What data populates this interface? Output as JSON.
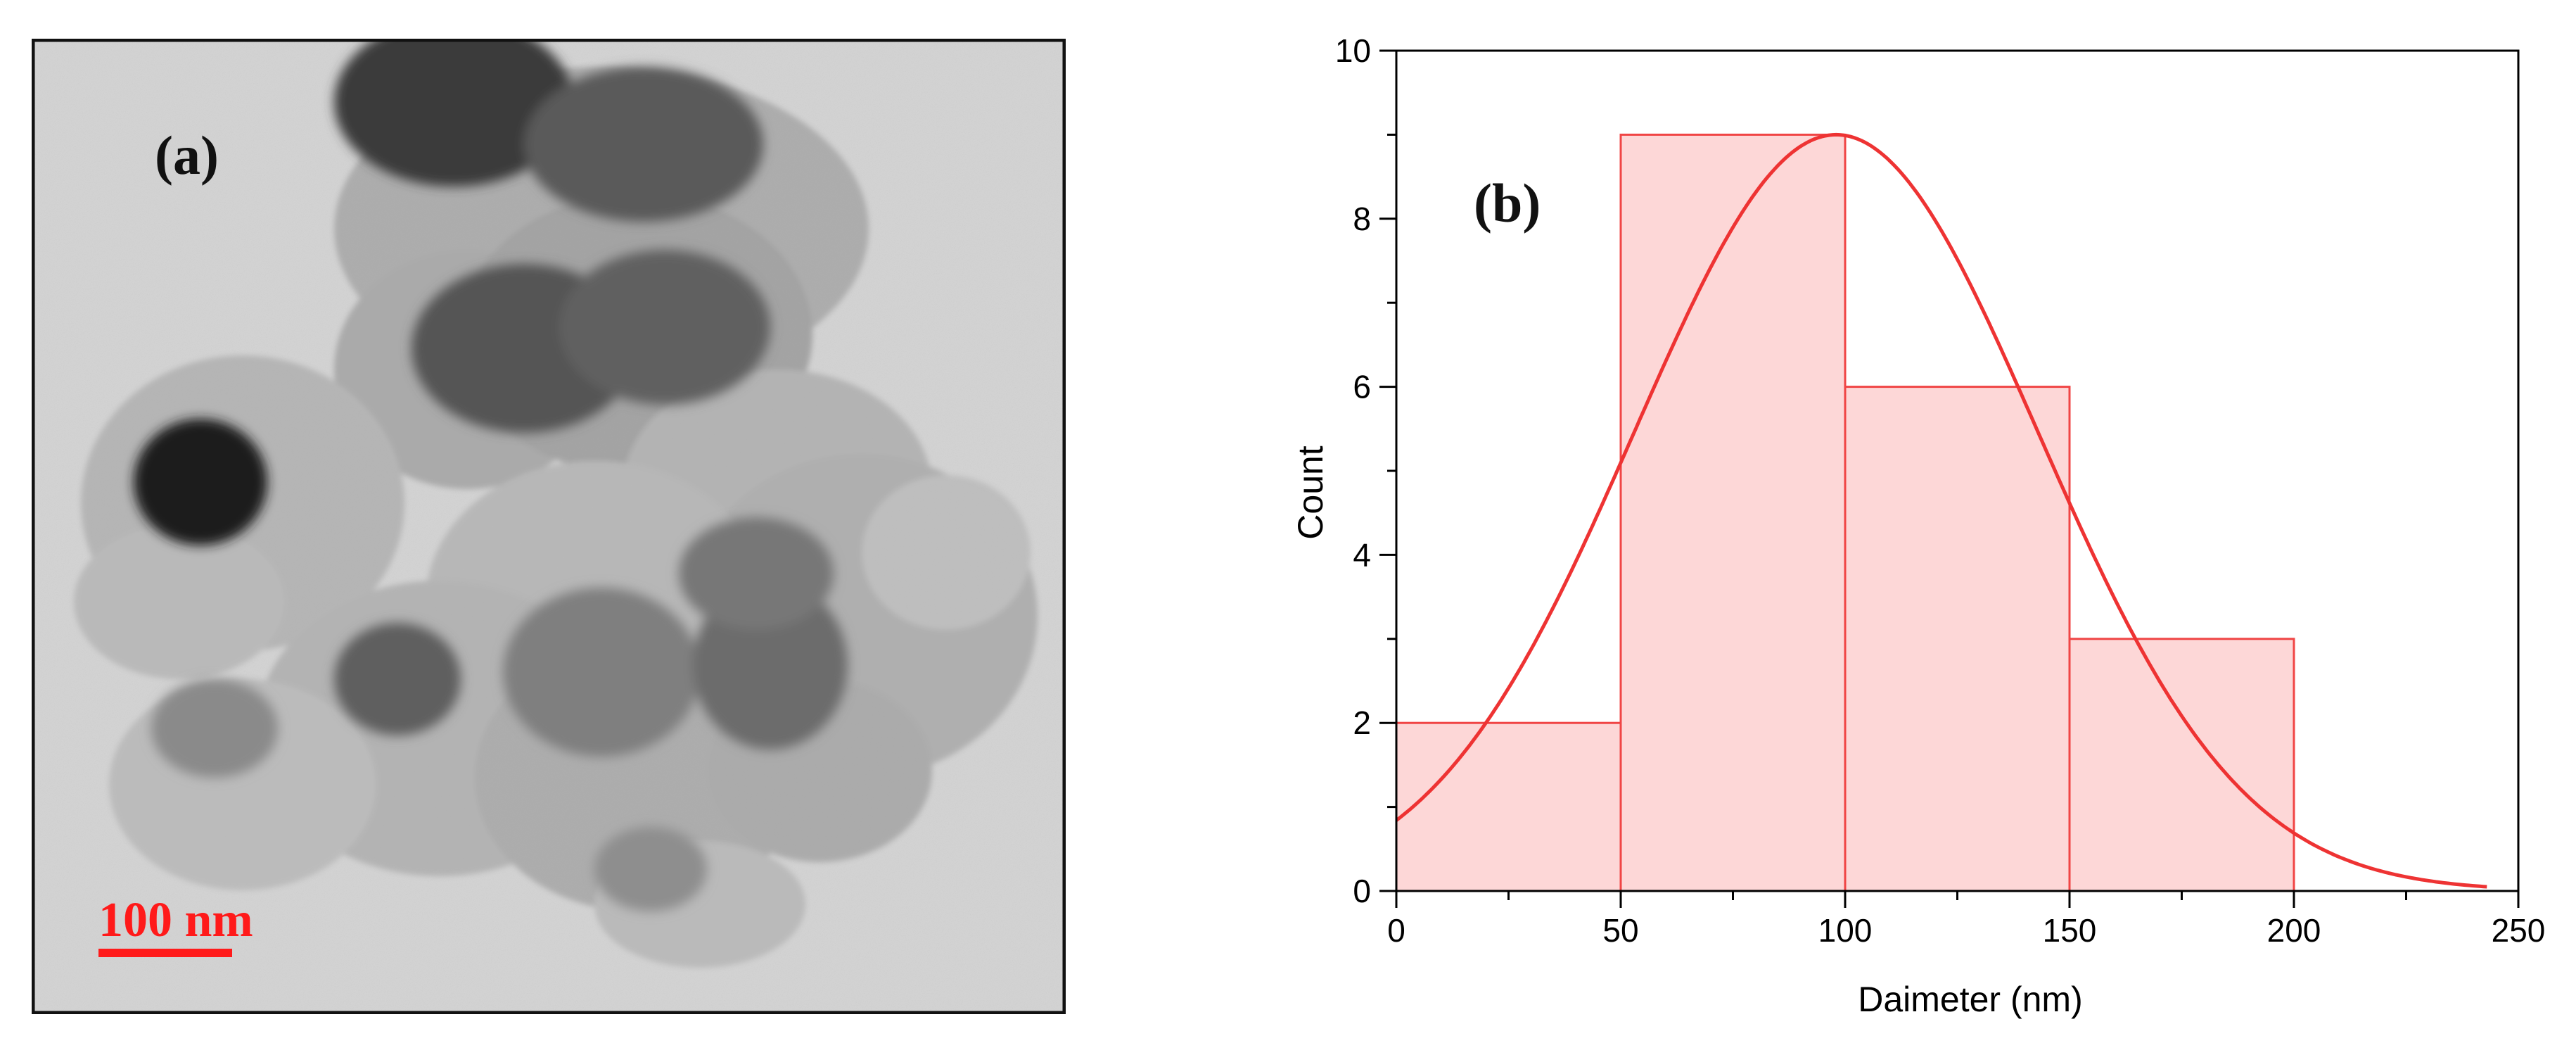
{
  "panels": {
    "a": {
      "label": "(a)",
      "scale_bar": {
        "text": "100 nm",
        "color": "#ff1a1a"
      }
    },
    "b": {
      "label": "(b)"
    }
  },
  "colors": {
    "bar_fill": "#fdd7d7",
    "bar_stroke": "#f04545",
    "fit_line": "#ee3333",
    "axis": "#000000",
    "tem_background": "#d2d2d2"
  },
  "chart_data": {
    "type": "bar",
    "subtype": "histogram-with-gaussian-fit",
    "title": "",
    "xlabel": "Daimeter (nm)",
    "ylabel": "Count",
    "xlim": [
      0,
      250
    ],
    "ylim": [
      0,
      10
    ],
    "x_ticks": [
      0,
      50,
      100,
      150,
      200,
      250
    ],
    "y_ticks": [
      0,
      2,
      4,
      6,
      8,
      10
    ],
    "bins": [
      {
        "start": 0,
        "end": 50,
        "count": 2
      },
      {
        "start": 50,
        "end": 100,
        "count": 9
      },
      {
        "start": 100,
        "end": 150,
        "count": 6
      },
      {
        "start": 150,
        "end": 200,
        "count": 3
      }
    ],
    "fit": {
      "type": "gaussian",
      "peak_x": 98,
      "peak_y": 9,
      "sigma": 45,
      "x_range": [
        0,
        243
      ]
    },
    "grid": false,
    "legend": "none"
  }
}
